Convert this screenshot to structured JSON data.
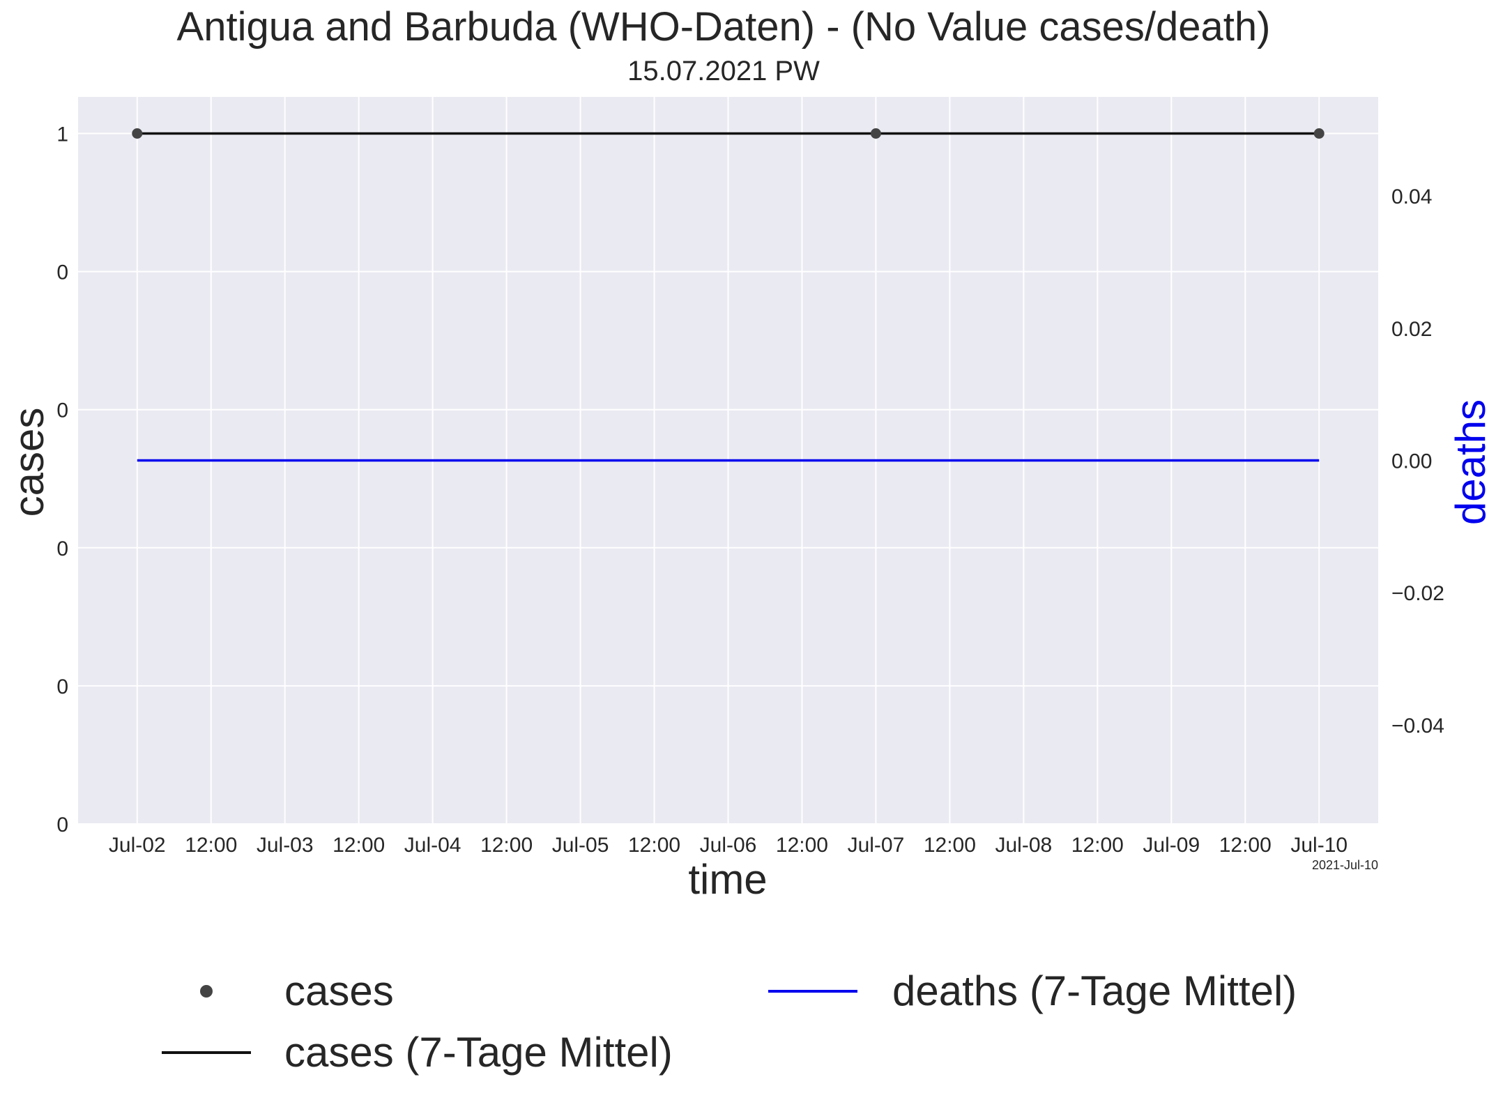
{
  "chart_data": {
    "type": "line",
    "title": "Antigua and Barbuda (WHO-Daten) - (No Value cases/death)",
    "subtitle": "15.07.2021 PW",
    "xlabel": "time",
    "ylabel_left": "cases",
    "ylabel_right": "deaths",
    "x_tick_labels": [
      "Jul-02",
      "12:00",
      "Jul-03",
      "12:00",
      "Jul-04",
      "12:00",
      "Jul-05",
      "12:00",
      "Jul-06",
      "12:00",
      "Jul-07",
      "12:00",
      "Jul-08",
      "12:00",
      "Jul-09",
      "12:00",
      "Jul-10"
    ],
    "x_offset_label": "2021-Jul-10",
    "left_y_tick_labels": [
      "1",
      "0",
      "0",
      "0",
      "0",
      "0"
    ],
    "right_y_tick_labels": [
      "0.04",
      "0.02",
      "0.00",
      "−0.02",
      "−0.04"
    ],
    "xlim": [
      "2021-07-01T14:24",
      "2021-07-10T09:36"
    ],
    "ylim_left": [
      0,
      1.053
    ],
    "ylim_right": [
      -0.055,
      0.055
    ],
    "grid": true,
    "legend_position": "bottom",
    "series": [
      {
        "name": "cases",
        "kind": "markers",
        "axis": "left",
        "color": "#444444",
        "x": [
          "2021-07-02",
          "2021-07-07",
          "2021-07-10"
        ],
        "y": [
          1,
          1,
          1
        ]
      },
      {
        "name": "cases (7-Tage Mittel)",
        "kind": "line",
        "axis": "left",
        "color": "#111111",
        "x": [
          "2021-07-02",
          "2021-07-10"
        ],
        "y": [
          1,
          1
        ]
      },
      {
        "name": "deaths (7-Tage Mittel)",
        "kind": "line",
        "axis": "right",
        "color": "#0000ee",
        "x": [
          "2021-07-02",
          "2021-07-10"
        ],
        "y": [
          0,
          0
        ]
      }
    ],
    "colors": {
      "plot_background": "#eaeaf2",
      "grid": "#ffffff",
      "deaths_label": "#0000ee"
    }
  }
}
